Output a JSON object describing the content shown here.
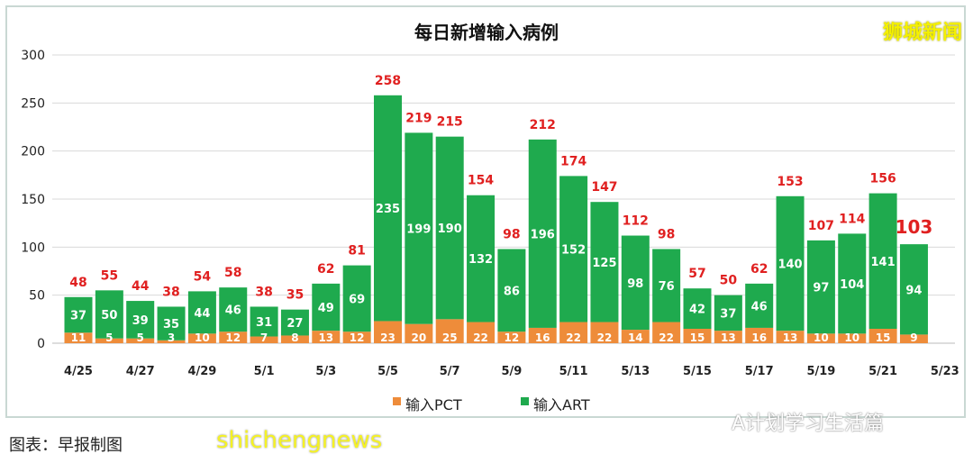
{
  "brand": "狮城新闻",
  "wechat_label": "A计划学习生活篇",
  "credit": "图表：早报制图",
  "watermark": "shichengnews",
  "colors": {
    "art": "#1faa4e",
    "pct": "#ee8c3a",
    "total": "#e02020",
    "grid": "#d9d9d9"
  },
  "chart_data": {
    "type": "bar",
    "stacked": true,
    "title": "每日新增输入病例",
    "categories": [
      "4/25",
      "4/26",
      "4/27",
      "4/28",
      "4/29",
      "4/30",
      "5/1",
      "5/2",
      "5/3",
      "5/4",
      "5/5",
      "5/6",
      "5/7",
      "5/8",
      "5/9",
      "5/10",
      "5/11",
      "5/12",
      "5/13",
      "5/14",
      "5/15",
      "5/16",
      "5/17",
      "5/18",
      "5/19",
      "5/20",
      "5/21",
      "5/22"
    ],
    "x_tick_labels": [
      "4/25",
      "4/27",
      "4/29",
      "5/1",
      "5/3",
      "5/5",
      "5/7",
      "5/9",
      "5/11",
      "5/13",
      "5/15",
      "5/17",
      "5/19",
      "5/21",
      "5/23"
    ],
    "series": [
      {
        "name": "输入PCT",
        "values": [
          11,
          5,
          5,
          3,
          10,
          12,
          7,
          8,
          13,
          12,
          23,
          20,
          25,
          22,
          12,
          16,
          22,
          22,
          14,
          22,
          15,
          13,
          16,
          13,
          10,
          10,
          15,
          9
        ]
      },
      {
        "name": "输入ART",
        "values": [
          37,
          50,
          39,
          35,
          44,
          46,
          31,
          27,
          49,
          69,
          235,
          199,
          190,
          132,
          86,
          196,
          152,
          125,
          98,
          76,
          42,
          37,
          46,
          140,
          97,
          104,
          141,
          94
        ]
      }
    ],
    "totals": [
      48,
      55,
      44,
      38,
      54,
      58,
      38,
      35,
      62,
      81,
      258,
      219,
      215,
      154,
      98,
      212,
      174,
      147,
      112,
      98,
      57,
      50,
      62,
      153,
      107,
      114,
      156,
      103
    ],
    "ylim": [
      0,
      300
    ],
    "yticks": [
      0,
      50,
      100,
      150,
      200,
      250,
      300
    ],
    "grid": true,
    "legend": "bottom"
  }
}
